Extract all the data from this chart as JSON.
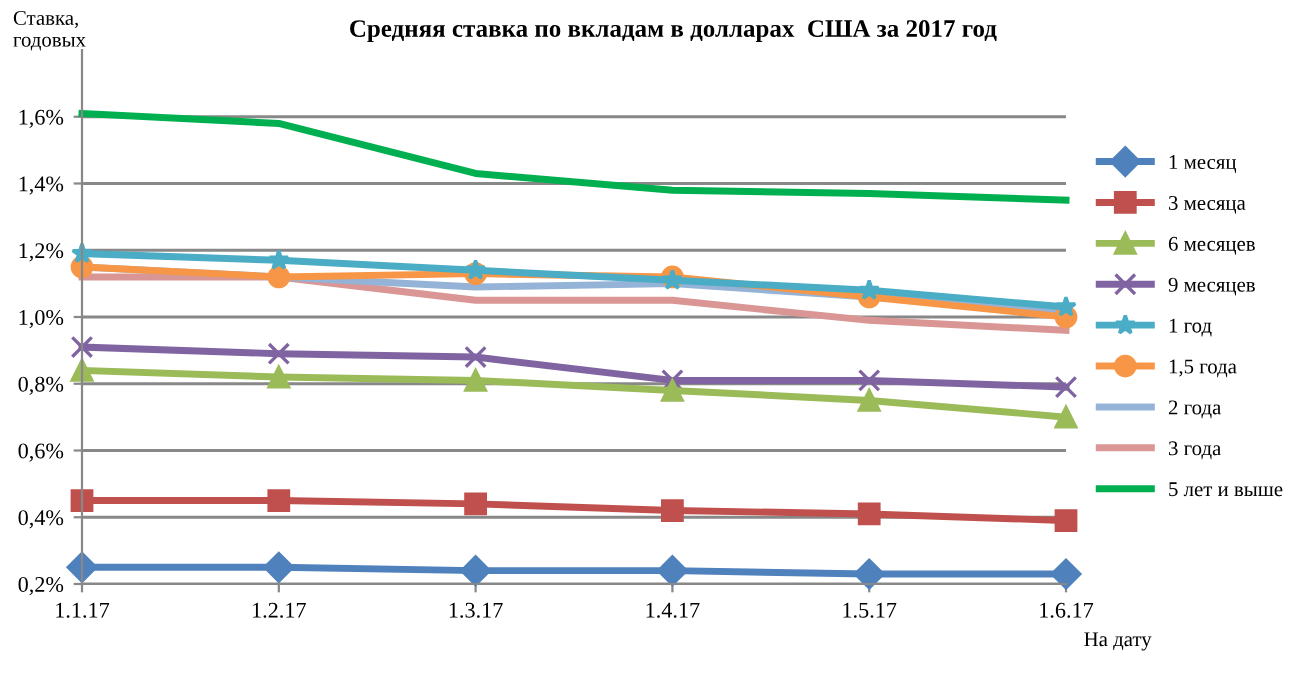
{
  "chart_data": {
    "type": "line",
    "title": "Средняя ставка по вкладам в долларах  США за 2017 год",
    "ylabel": "Ставка,\nгодовых",
    "xlabel": "На дату",
    "categories": [
      "1.1.17",
      "1.2.17",
      "1.3.17",
      "1.4.17",
      "1.5.17",
      "1.6.17"
    ],
    "series": [
      {
        "name": "1 месяц",
        "color": "#4f81bd",
        "marker": "diamond",
        "values": [
          0.25,
          0.25,
          0.24,
          0.24,
          0.23,
          0.23
        ]
      },
      {
        "name": "3 месяца",
        "color": "#c0504d",
        "marker": "square",
        "values": [
          0.45,
          0.45,
          0.44,
          0.42,
          0.41,
          0.39
        ]
      },
      {
        "name": "6 месяцев",
        "color": "#9bbb59",
        "marker": "triangle",
        "values": [
          0.84,
          0.82,
          0.81,
          0.78,
          0.75,
          0.7
        ]
      },
      {
        "name": "9 месяцев",
        "color": "#8064a2",
        "marker": "cross",
        "values": [
          0.91,
          0.89,
          0.88,
          0.81,
          0.81,
          0.79
        ]
      },
      {
        "name": "1 год",
        "color": "#4bacc6",
        "marker": "star",
        "values": [
          1.19,
          1.17,
          1.14,
          1.11,
          1.08,
          1.03
        ]
      },
      {
        "name": "1,5 года",
        "color": "#f79646",
        "marker": "circle",
        "values": [
          1.15,
          1.12,
          1.13,
          1.12,
          1.06,
          1.0
        ]
      },
      {
        "name": "2 года",
        "color": "#95b3d7",
        "marker": "none",
        "values": [
          1.15,
          1.12,
          1.09,
          1.1,
          1.06,
          1.02
        ]
      },
      {
        "name": "3 года",
        "color": "#d99694",
        "marker": "none",
        "values": [
          1.12,
          1.12,
          1.05,
          1.05,
          0.99,
          0.96
        ]
      },
      {
        "name": "5 лет и выше",
        "color": "#00b050",
        "marker": "none",
        "values": [
          1.61,
          1.58,
          1.43,
          1.38,
          1.37,
          1.35
        ]
      }
    ],
    "ylim": [
      0.2,
      1.8
    ],
    "yticks": [
      {
        "value": 0.2,
        "label": "0,2%"
      },
      {
        "value": 0.4,
        "label": "0,4%"
      },
      {
        "value": 0.6,
        "label": "0,6%"
      },
      {
        "value": 0.8,
        "label": "0,8%"
      },
      {
        "value": 1.0,
        "label": "1,0%"
      },
      {
        "value": 1.2,
        "label": "1,2%"
      },
      {
        "value": 1.4,
        "label": "1,4%"
      },
      {
        "value": 1.6,
        "label": "1,6%"
      }
    ],
    "grid": "y",
    "legend": "right"
  }
}
